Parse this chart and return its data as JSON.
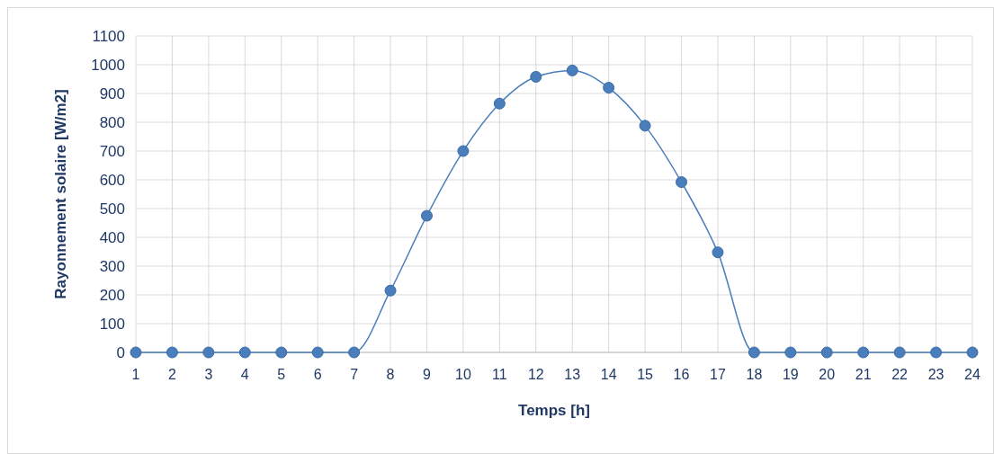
{
  "chart_data": {
    "type": "line",
    "xlabel": "Temps [h]",
    "ylabel": "Rayonnement solaire [W/m2]",
    "x": [
      1,
      2,
      3,
      4,
      5,
      6,
      7,
      8,
      9,
      10,
      11,
      12,
      13,
      14,
      15,
      16,
      17,
      18,
      19,
      20,
      21,
      22,
      23,
      24
    ],
    "series": [
      {
        "color": "#4a7ebb",
        "values": [
          0,
          0,
          0,
          0,
          0,
          0,
          0,
          215,
          475,
          700,
          865,
          958,
          980,
          920,
          788,
          592,
          348,
          0,
          0,
          0,
          0,
          0,
          0,
          0
        ]
      }
    ],
    "xlim": [
      1,
      24
    ],
    "xticks": [
      1,
      2,
      3,
      4,
      5,
      6,
      7,
      8,
      9,
      10,
      11,
      12,
      13,
      14,
      15,
      16,
      17,
      18,
      19,
      20,
      21,
      22,
      23,
      24
    ],
    "ylim": [
      0,
      1100
    ],
    "yticks": [
      0,
      100,
      200,
      300,
      400,
      500,
      600,
      700,
      800,
      900,
      1000,
      1100
    ],
    "grid": true,
    "marker": "circle",
    "line_style": "solid"
  }
}
